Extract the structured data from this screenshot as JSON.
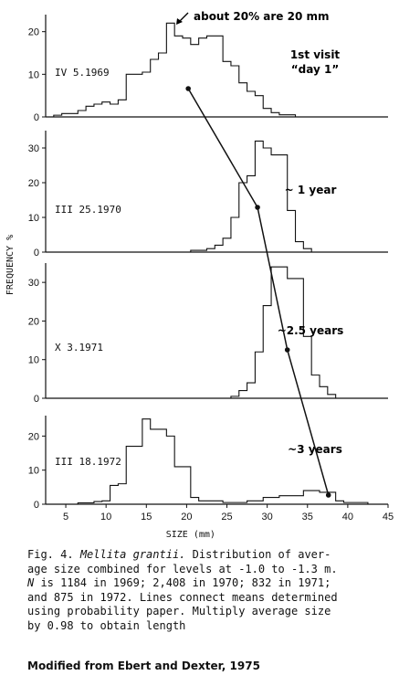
{
  "chart_data": {
    "type": "bar",
    "xlabel": "SIZE (mm)",
    "ylabel": "FREQUENCY %",
    "x_ticks": [
      5,
      10,
      15,
      20,
      25,
      30,
      35,
      40,
      45
    ],
    "xlim": [
      2.5,
      45
    ],
    "bin_width": 1,
    "top_annotation": "about 20% are 20 mm",
    "panels": [
      {
        "label": "IV 5.1969",
        "annotation": [
          "1st visit",
          "“day 1”"
        ],
        "ylim": [
          0,
          24
        ],
        "y_ticks": [
          0,
          10,
          20
        ],
        "bins": [
          [
            4,
            0.4
          ],
          [
            5,
            0.8
          ],
          [
            6,
            0.8
          ],
          [
            7,
            1.5
          ],
          [
            8,
            2.5
          ],
          [
            9,
            3
          ],
          [
            10,
            3.5
          ],
          [
            11,
            3
          ],
          [
            12,
            4
          ],
          [
            13,
            10
          ],
          [
            14,
            10
          ],
          [
            15,
            10.5
          ],
          [
            16,
            13.5
          ],
          [
            17,
            15
          ],
          [
            18,
            22
          ],
          [
            19,
            19
          ],
          [
            20,
            18.5
          ],
          [
            21,
            17
          ],
          [
            22,
            18.5
          ],
          [
            23,
            19
          ],
          [
            24,
            19
          ],
          [
            25,
            13
          ],
          [
            26,
            12
          ],
          [
            27,
            8
          ],
          [
            28,
            6
          ],
          [
            29,
            5
          ],
          [
            30,
            2
          ],
          [
            31,
            1
          ],
          [
            32,
            0.5
          ],
          [
            33,
            0.5
          ]
        ],
        "mean": 20.2
      },
      {
        "label": "III 25.1970",
        "annotation": [
          "~ 1 year"
        ],
        "ylim": [
          0,
          35
        ],
        "y_ticks": [
          0,
          10,
          20,
          30
        ],
        "bins": [
          [
            21,
            0.5
          ],
          [
            22,
            0.5
          ],
          [
            23,
            1
          ],
          [
            24,
            2
          ],
          [
            25,
            4
          ],
          [
            26,
            10
          ],
          [
            27,
            20
          ],
          [
            28,
            22
          ],
          [
            29,
            32
          ],
          [
            30,
            30
          ],
          [
            31,
            28
          ],
          [
            32,
            28
          ],
          [
            33,
            12
          ],
          [
            34,
            3
          ],
          [
            35,
            1
          ]
        ],
        "mean": 28.8
      },
      {
        "label": "X 3.1971",
        "annotation": [
          "~2.5 years"
        ],
        "ylim": [
          0,
          35
        ],
        "y_ticks": [
          0,
          10,
          20,
          30
        ],
        "bins": [
          [
            26,
            0.5
          ],
          [
            27,
            2
          ],
          [
            28,
            4
          ],
          [
            29,
            12
          ],
          [
            30,
            24
          ],
          [
            31,
            34
          ],
          [
            32,
            34
          ],
          [
            33,
            31
          ],
          [
            34,
            31
          ],
          [
            35,
            16
          ],
          [
            36,
            6
          ],
          [
            37,
            3
          ],
          [
            38,
            1
          ]
        ],
        "mean": 32.5
      },
      {
        "label": "III 18.1972",
        "annotation": [
          "~3 years"
        ],
        "ylim": [
          0,
          26
        ],
        "y_ticks": [
          0,
          10,
          20
        ],
        "bins": [
          [
            7,
            0.4
          ],
          [
            8,
            0.4
          ],
          [
            9,
            0.8
          ],
          [
            10,
            1
          ],
          [
            11,
            5.5
          ],
          [
            12,
            6
          ],
          [
            13,
            17
          ],
          [
            14,
            17
          ],
          [
            15,
            25
          ],
          [
            16,
            22
          ],
          [
            17,
            22
          ],
          [
            18,
            20
          ],
          [
            19,
            11
          ],
          [
            20,
            11
          ],
          [
            21,
            2
          ],
          [
            22,
            1
          ],
          [
            23,
            1
          ],
          [
            24,
            1
          ],
          [
            25,
            0.5
          ],
          [
            26,
            0.5
          ],
          [
            27,
            0.5
          ],
          [
            28,
            1
          ],
          [
            29,
            1
          ],
          [
            30,
            2
          ],
          [
            31,
            2
          ],
          [
            32,
            2.5
          ],
          [
            33,
            2.5
          ],
          [
            34,
            2.5
          ],
          [
            35,
            4
          ],
          [
            36,
            4
          ],
          [
            37,
            3.5
          ],
          [
            38,
            3.5
          ],
          [
            39,
            1
          ],
          [
            40,
            0.5
          ],
          [
            41,
            0.5
          ],
          [
            42,
            0.5
          ]
        ],
        "mean": 37.6
      }
    ]
  },
  "caption": {
    "fig_label": "Fig. 4.",
    "species": "Mellita grantii.",
    "line1_rest": " Distribution of aver-",
    "line2": "age size combined for levels at -1.0 to -1.3 m.",
    "n_letter": "N",
    "line3_rest": " is 1184 in 1969; 2,408 in 1970; 832 in 1971;",
    "line4": "and 875 in 1972. Lines connect means determined",
    "line5": "using probability paper. Multiply average size",
    "line6": "by 0.98 to obtain length"
  },
  "credit": "Modified from Ebert and Dexter, 1975"
}
